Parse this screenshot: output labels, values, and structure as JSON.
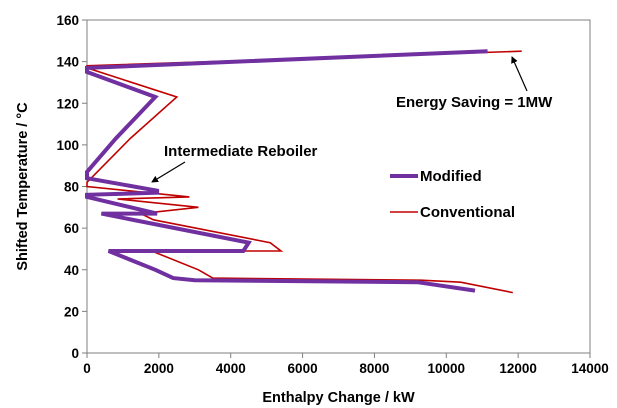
{
  "chart_data": {
    "type": "line",
    "title": "",
    "xlabel": "Enthalpy Change / kW",
    "ylabel": "Shifted Temperature / °C",
    "xlim": [
      0,
      14000
    ],
    "ylim": [
      0,
      160
    ],
    "xticks": [
      0,
      2000,
      4000,
      6000,
      8000,
      10000,
      12000,
      14000
    ],
    "yticks": [
      0,
      20,
      40,
      60,
      80,
      100,
      120,
      140,
      160
    ],
    "grid": false,
    "legend_position": "right-middle",
    "series": [
      {
        "name": "Modified",
        "color": "#7030A0",
        "points": [
          [
            11150,
            145
          ],
          [
            0,
            137
          ],
          [
            0,
            135
          ],
          [
            1900,
            123
          ],
          [
            800,
            103
          ],
          [
            0,
            87
          ],
          [
            0,
            84
          ],
          [
            1950,
            78
          ],
          [
            1950,
            77
          ],
          [
            0,
            76
          ],
          [
            0,
            75
          ],
          [
            1950,
            67
          ],
          [
            400,
            67
          ],
          [
            4500,
            53
          ],
          [
            4350,
            49
          ],
          [
            600,
            49
          ],
          [
            1900,
            40
          ],
          [
            2400,
            36
          ],
          [
            3000,
            35
          ],
          [
            9200,
            34
          ],
          [
            10800,
            30
          ]
        ]
      },
      {
        "name": "Conventional",
        "color": "#C00000",
        "points": [
          [
            12100,
            145
          ],
          [
            0,
            138
          ],
          [
            0,
            137
          ],
          [
            2500,
            123
          ],
          [
            1200,
            103
          ],
          [
            0,
            82
          ],
          [
            0,
            80
          ],
          [
            2850,
            75
          ],
          [
            850,
            74
          ],
          [
            3100,
            70
          ],
          [
            1500,
            67
          ],
          [
            1850,
            64
          ],
          [
            5100,
            53
          ],
          [
            5400,
            49
          ],
          [
            1800,
            49
          ],
          [
            3100,
            40
          ],
          [
            3500,
            36
          ],
          [
            9300,
            35
          ],
          [
            10400,
            34
          ],
          [
            11850,
            29
          ]
        ]
      }
    ],
    "annotations": [
      {
        "text": "Energy Saving = 1MW",
        "x": 11800,
        "y": 104,
        "arrow_to": [
          12000,
          144
        ]
      },
      {
        "text": "Intermediate Reboiler",
        "x": 2300,
        "y": 106,
        "arrow_to": [
          1300,
          88
        ]
      }
    ]
  }
}
